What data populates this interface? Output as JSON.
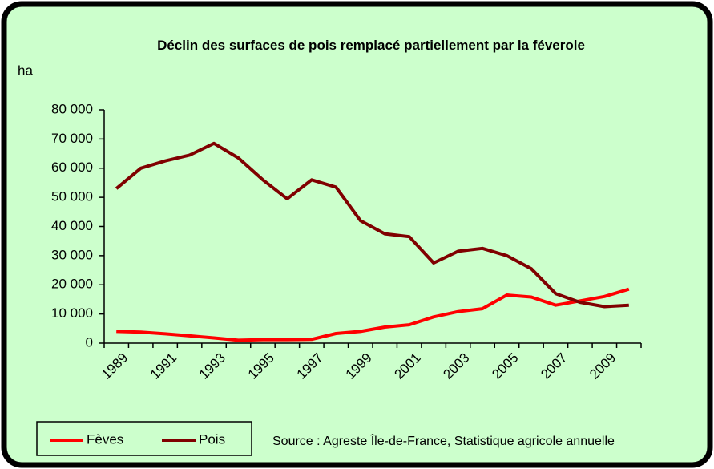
{
  "chart_data": {
    "type": "line",
    "title": "Déclin des surfaces de pois remplacé partiellement par la féverole",
    "y_label": "ha",
    "source": "Source : Agreste Île-de-France, Statistique agricole annuelle",
    "categories": [
      "1989",
      null,
      "1991",
      null,
      "1993",
      null,
      "1995",
      null,
      "1997",
      null,
      "1999",
      null,
      "2001",
      null,
      "2003",
      null,
      "2005",
      null,
      "2007",
      null,
      "2009",
      null
    ],
    "series": [
      {
        "name": "Fèves",
        "color": "#ff0000",
        "values": [
          4000,
          3800,
          3200,
          2500,
          1800,
          1000,
          1200,
          1200,
          1300,
          3300,
          4000,
          5500,
          6300,
          9000,
          10800,
          11800,
          16500,
          15800,
          13000,
          14500,
          16000,
          18500
        ]
      },
      {
        "name": "Pois",
        "color": "#800000",
        "values": [
          53000,
          60000,
          62500,
          64500,
          68500,
          63500,
          56000,
          49500,
          56000,
          53500,
          42000,
          37500,
          36500,
          27500,
          31500,
          32500,
          30000,
          25500,
          17000,
          14000,
          12500,
          13000
        ]
      }
    ],
    "ylim": [
      0,
      80000
    ],
    "yticks": [
      {
        "value": 0,
        "label": "0"
      },
      {
        "value": 10000,
        "label": "10 000"
      },
      {
        "value": 20000,
        "label": "20 000"
      },
      {
        "value": 30000,
        "label": "30 000"
      },
      {
        "value": 40000,
        "label": "40 000"
      },
      {
        "value": 50000,
        "label": "50 000"
      },
      {
        "value": 60000,
        "label": "60 000"
      },
      {
        "value": 70000,
        "label": "70 000"
      },
      {
        "value": 80000,
        "label": "80 000"
      }
    ],
    "grid": false,
    "legend": "bottom-left"
  }
}
